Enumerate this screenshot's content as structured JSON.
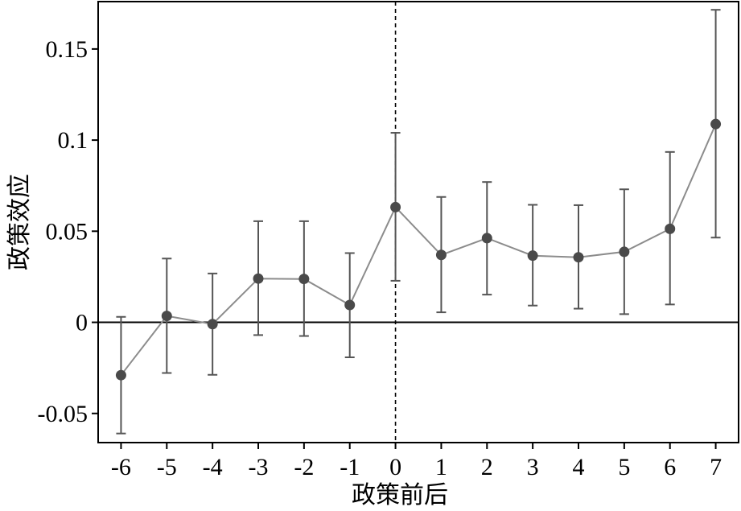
{
  "chart_data": {
    "type": "scatter",
    "xlabel": "政策前后",
    "ylabel": "政策效应",
    "x": [
      -6,
      -5,
      -4,
      -3,
      -2,
      -1,
      0,
      1,
      2,
      3,
      4,
      5,
      6,
      7
    ],
    "series": [
      {
        "values": [
          -0.029,
          0.0035,
          -0.001,
          0.024,
          0.0238,
          0.0095,
          0.0632,
          0.037,
          0.0462,
          0.0366,
          0.0357,
          0.0387,
          0.0513,
          0.1088
        ],
        "ci_upper": [
          0.003,
          0.035,
          0.0268,
          0.0555,
          0.0555,
          0.038,
          0.104,
          0.0688,
          0.077,
          0.0645,
          0.0643,
          0.073,
          0.0935,
          0.1715
        ],
        "ci_lower": [
          -0.061,
          -0.0278,
          -0.0288,
          -0.007,
          -0.0075,
          -0.0192,
          0.0228,
          0.0055,
          0.0152,
          0.0092,
          0.0075,
          0.0045,
          0.0098,
          0.0465
        ]
      }
    ],
    "xticks": [
      "-6",
      "-5",
      "-4",
      "-3",
      "-2",
      "-1",
      "0",
      "1",
      "2",
      "3",
      "4",
      "5",
      "6",
      "7"
    ],
    "yticks": [
      "-0.05",
      "0",
      "0.05",
      "0.1",
      "0.15"
    ],
    "ytick_values": [
      -0.05,
      0,
      0.05,
      0.1,
      0.15
    ],
    "xlim": [
      -6.5,
      7.5
    ],
    "ylim": [
      -0.066,
      0.176
    ],
    "reference_lines": {
      "horizontal_y": 0,
      "vertical_x": 0
    },
    "grid": false,
    "colors": {
      "series": "#8c8c8c",
      "marker": "#4a4a4a",
      "error_bar": "#555555",
      "axes": "#000000"
    }
  }
}
